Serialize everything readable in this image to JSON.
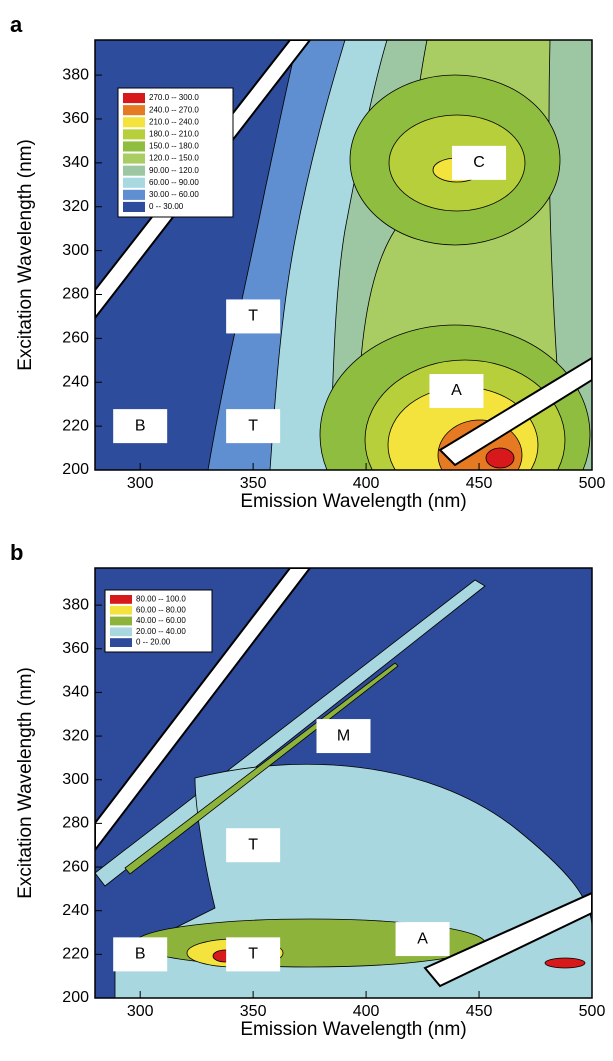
{
  "chart_data": [
    {
      "type": "contour",
      "panel": "a",
      "xlabel": "Emission Wavelength (nm)",
      "ylabel": "Excitation Wavelength (nm)",
      "xlim": [
        280,
        500
      ],
      "ylim": [
        200,
        396
      ],
      "xticks": [
        300,
        350,
        400,
        450,
        500
      ],
      "yticks": [
        200,
        220,
        240,
        260,
        280,
        300,
        320,
        340,
        360,
        380
      ],
      "levels": [
        {
          "label": "270.0 -- 300.0",
          "color": "#d7191c"
        },
        {
          "label": "240.0 -- 270.0",
          "color": "#e57a22"
        },
        {
          "label": "210.0 -- 240.0",
          "color": "#f4e33c"
        },
        {
          "label": "180.0 -- 210.0",
          "color": "#b7cf3b"
        },
        {
          "label": "150.0 -- 180.0",
          "color": "#8fbd3f"
        },
        {
          "label": "120.0 -- 150.0",
          "color": "#aacd63"
        },
        {
          "label": "90.00 -- 120.0",
          "color": "#9dc6a3"
        },
        {
          "label": "60.00 -- 90.00",
          "color": "#a8d8e0"
        },
        {
          "label": "30.00 -- 60.00",
          "color": "#5f8fd0"
        },
        {
          "label": "0 -- 30.00",
          "color": "#2e4c9c"
        }
      ],
      "annotations": [
        {
          "text": "C",
          "x": 450,
          "y": 340
        },
        {
          "text": "T",
          "x": 350,
          "y": 270
        },
        {
          "text": "A",
          "x": 440,
          "y": 236
        },
        {
          "text": "B",
          "x": 300,
          "y": 220
        },
        {
          "text": "T",
          "x": 350,
          "y": 220
        }
      ]
    },
    {
      "type": "contour",
      "panel": "b",
      "xlabel": "Emission Wavelength (nm)",
      "ylabel": "Excitation Wavelength (nm)",
      "xlim": [
        280,
        500
      ],
      "ylim": [
        200,
        397
      ],
      "xticks": [
        300,
        350,
        400,
        450,
        500
      ],
      "yticks": [
        200,
        220,
        240,
        260,
        280,
        300,
        320,
        340,
        360,
        380
      ],
      "levels": [
        {
          "label": "80.00 -- 100.0",
          "color": "#d7191c"
        },
        {
          "label": "60.00 -- 80.00",
          "color": "#f4e33c"
        },
        {
          "label": "40.00 -- 60.00",
          "color": "#8db33a"
        },
        {
          "label": "20.00 -- 40.00",
          "color": "#a9d7df"
        },
        {
          "label": "0 -- 20.00",
          "color": "#2e4a9b"
        }
      ],
      "annotations": [
        {
          "text": "M",
          "x": 390,
          "y": 320
        },
        {
          "text": "T",
          "x": 350,
          "y": 270
        },
        {
          "text": "A",
          "x": 425,
          "y": 227
        },
        {
          "text": "B",
          "x": 300,
          "y": 220
        },
        {
          "text": "T",
          "x": 350,
          "y": 220
        }
      ]
    }
  ]
}
